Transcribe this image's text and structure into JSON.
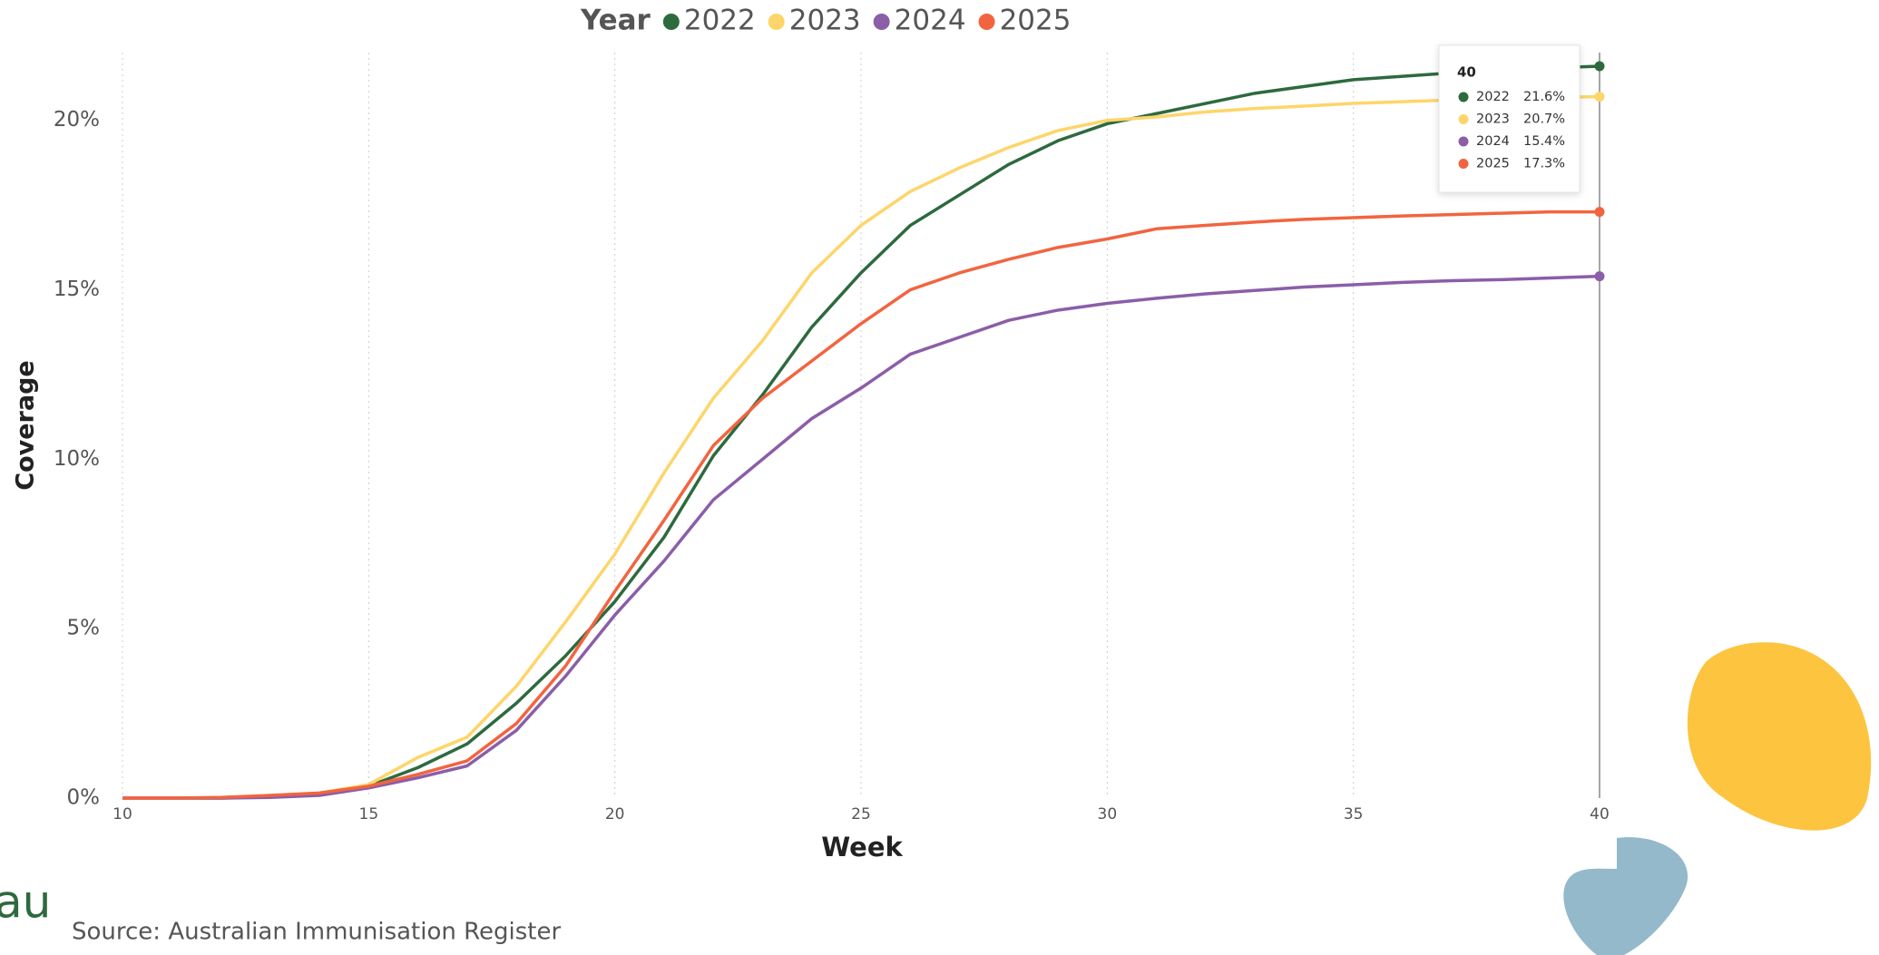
{
  "chart_data": {
    "type": "line",
    "legend_title": "Year",
    "x_label": "Week",
    "y_label": "Coverage",
    "source": "Source: Australian Immunisation Register",
    "logo_text": "au",
    "x": [
      10,
      11,
      12,
      13,
      14,
      15,
      16,
      17,
      18,
      19,
      20,
      21,
      22,
      23,
      24,
      25,
      26,
      27,
      28,
      29,
      30,
      31,
      32,
      33,
      34,
      35,
      36,
      37,
      38,
      39,
      40
    ],
    "series": [
      {
        "name": "2022",
        "color": "#2d6a3e",
        "values": [
          0,
          0,
          0,
          0.05,
          0.1,
          0.35,
          0.9,
          1.6,
          2.8,
          4.2,
          5.8,
          7.7,
          10.1,
          11.9,
          13.9,
          15.5,
          16.9,
          17.8,
          18.7,
          19.4,
          19.9,
          20.2,
          20.5,
          20.8,
          21.0,
          21.2,
          21.3,
          21.4,
          21.5,
          21.55,
          21.6
        ]
      },
      {
        "name": "2023",
        "color": "#fdd56a",
        "values": [
          0,
          0,
          0,
          0.05,
          0.15,
          0.4,
          1.2,
          1.8,
          3.3,
          5.2,
          7.2,
          9.6,
          11.8,
          13.5,
          15.5,
          16.9,
          17.9,
          18.6,
          19.2,
          19.7,
          20.0,
          20.1,
          20.25,
          20.35,
          20.42,
          20.5,
          20.55,
          20.6,
          20.65,
          20.68,
          20.7
        ]
      },
      {
        "name": "2024",
        "color": "#8b5ea8",
        "values": [
          0,
          0,
          0,
          0.02,
          0.08,
          0.3,
          0.6,
          0.95,
          2.0,
          3.6,
          5.4,
          7.0,
          8.8,
          10.0,
          11.2,
          12.1,
          13.1,
          13.6,
          14.1,
          14.4,
          14.6,
          14.75,
          14.88,
          14.98,
          15.08,
          15.15,
          15.22,
          15.27,
          15.3,
          15.35,
          15.4
        ]
      },
      {
        "name": "2025",
        "color": "#f26440",
        "values": [
          0,
          0,
          0.02,
          0.08,
          0.15,
          0.35,
          0.7,
          1.1,
          2.2,
          3.9,
          6.1,
          8.2,
          10.4,
          11.8,
          12.9,
          14.0,
          15.0,
          15.5,
          15.9,
          16.25,
          16.5,
          16.8,
          16.9,
          17.0,
          17.08,
          17.13,
          17.18,
          17.22,
          17.26,
          17.3,
          17.3
        ]
      }
    ],
    "xlim": [
      10,
      40
    ],
    "xticks": [
      10,
      15,
      20,
      25,
      30,
      35,
      40
    ],
    "ylim": [
      0,
      22
    ],
    "yticks": [
      {
        "value": 0,
        "label": "0%"
      },
      {
        "value": 5,
        "label": "5%"
      },
      {
        "value": 10,
        "label": "10%"
      },
      {
        "value": 15,
        "label": "15%"
      },
      {
        "value": 20,
        "label": "20%"
      }
    ],
    "grid": true,
    "tooltip": {
      "x": 40,
      "labels": [
        "21.6%",
        "20.7%",
        "15.4%",
        "17.3%"
      ]
    }
  }
}
